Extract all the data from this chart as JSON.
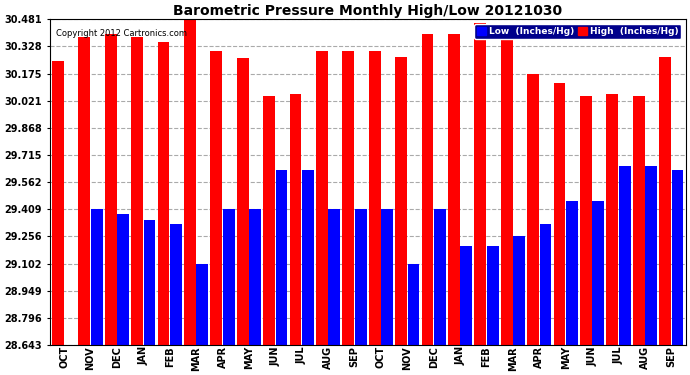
{
  "title": "Barometric Pressure Monthly High/Low 20121030",
  "copyright": "Copyright 2012 Cartronics.com",
  "categories": [
    "OCT",
    "NOV",
    "DEC",
    "JAN",
    "FEB",
    "MAR",
    "APR",
    "MAY",
    "JUN",
    "JUL",
    "AUG",
    "SEP",
    "OCT",
    "NOV",
    "DEC",
    "JAN",
    "FEB",
    "MAR",
    "APR",
    "MAY",
    "JUN",
    "JUL",
    "AUG",
    "SEP"
  ],
  "high_values": [
    30.243,
    30.381,
    30.401,
    30.381,
    30.355,
    30.481,
    30.302,
    30.261,
    30.048,
    30.057,
    30.302,
    30.302,
    30.302,
    30.268,
    30.401,
    30.401,
    30.462,
    30.401,
    30.175,
    30.122,
    30.048,
    30.062,
    30.048,
    30.268
  ],
  "low_values": [
    28.643,
    29.409,
    29.382,
    29.35,
    29.323,
    29.102,
    29.409,
    29.409,
    29.63,
    29.63,
    29.409,
    29.409,
    29.409,
    29.102,
    29.409,
    29.202,
    29.202,
    29.256,
    29.323,
    29.456,
    29.456,
    29.65,
    29.65,
    29.63
  ],
  "high_color": "#FF0000",
  "low_color": "#0000FF",
  "bg_color": "#FFFFFF",
  "plot_bg_color": "#FFFFFF",
  "grid_color": "#AAAAAA",
  "title_color": "#000000",
  "ymin": 28.643,
  "ymax": 30.481,
  "yticks": [
    28.643,
    28.796,
    28.949,
    29.102,
    29.256,
    29.409,
    29.562,
    29.715,
    29.868,
    30.021,
    30.175,
    30.328,
    30.481
  ],
  "legend_low_label": "Low  (Inches/Hg)",
  "legend_high_label": "High  (Inches/Hg)"
}
